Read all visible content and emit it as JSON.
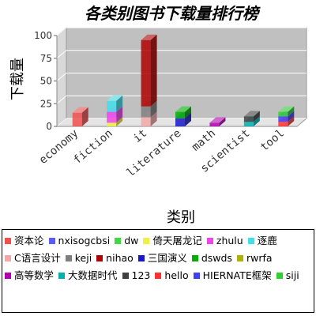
{
  "chart_data": {
    "type": "bar",
    "title": "各类别图书下载量排行榜",
    "xlabel": "类别",
    "ylabel": "下载量",
    "ylim": [
      0,
      100
    ],
    "yticks": [
      "0",
      "25",
      "50",
      "75",
      "100"
    ],
    "grid": true,
    "stacked": true,
    "three_d": true,
    "legend_position": "bottom",
    "categories": [
      "economy",
      "fiction",
      "it",
      "literature",
      "math",
      "scientist",
      "tool"
    ],
    "series": [
      {
        "name": "资本论",
        "color": "#f05050",
        "values": [
          15,
          0,
          0,
          0,
          0,
          0,
          0
        ]
      },
      {
        "name": "nxisogcbsi",
        "color": "#5a5aff",
        "values": [
          0,
          0,
          0,
          0,
          0,
          0,
          0
        ]
      },
      {
        "name": "dw",
        "color": "#40d840",
        "values": [
          0,
          0,
          0,
          0,
          0,
          0,
          0
        ]
      },
      {
        "name": "倚天屠龙记",
        "color": "#f0f040",
        "values": [
          0,
          4,
          0,
          0,
          0,
          0,
          0
        ]
      },
      {
        "name": "zhulu",
        "color": "#ee44ee",
        "values": [
          0,
          12,
          0,
          0,
          0,
          0,
          0
        ]
      },
      {
        "name": "逐鹿",
        "color": "#40e0e8",
        "values": [
          0,
          12,
          0,
          0,
          0,
          0,
          0
        ]
      },
      {
        "name": "C语言设计",
        "color": "#f2a8a8",
        "values": [
          0,
          0,
          10,
          0,
          0,
          0,
          0
        ]
      },
      {
        "name": "keji",
        "color": "#7f7f7f",
        "values": [
          0,
          0,
          12,
          0,
          0,
          0,
          0
        ]
      },
      {
        "name": "nihao",
        "color": "#b00000",
        "values": [
          0,
          0,
          73,
          0,
          0,
          0,
          0
        ]
      },
      {
        "name": "三国演义",
        "color": "#1818c8",
        "values": [
          0,
          0,
          0,
          9,
          0,
          0,
          0
        ]
      },
      {
        "name": "dswds",
        "color": "#00b000",
        "values": [
          0,
          0,
          0,
          7,
          0,
          0,
          0
        ]
      },
      {
        "name": "rwrfa",
        "color": "#b0b000",
        "values": [
          0,
          0,
          0,
          0,
          0,
          0,
          0
        ]
      },
      {
        "name": "高等数学",
        "color": "#b000b0",
        "values": [
          0,
          0,
          0,
          0,
          4,
          0,
          0
        ]
      },
      {
        "name": "大数据时代",
        "color": "#00b0b0",
        "values": [
          0,
          0,
          0,
          0,
          0,
          5,
          0
        ]
      },
      {
        "name": "123",
        "color": "#404040",
        "values": [
          0,
          0,
          0,
          0,
          0,
          6,
          0
        ]
      },
      {
        "name": "hello",
        "color": "#ff3030",
        "values": [
          0,
          0,
          0,
          0,
          0,
          0,
          5
        ]
      },
      {
        "name": "HIERNATE框架",
        "color": "#4040ff",
        "values": [
          0,
          0,
          0,
          0,
          0,
          0,
          6
        ]
      },
      {
        "name": "siji",
        "color": "#30d030",
        "values": [
          0,
          0,
          0,
          0,
          0,
          0,
          5
        ]
      }
    ]
  }
}
